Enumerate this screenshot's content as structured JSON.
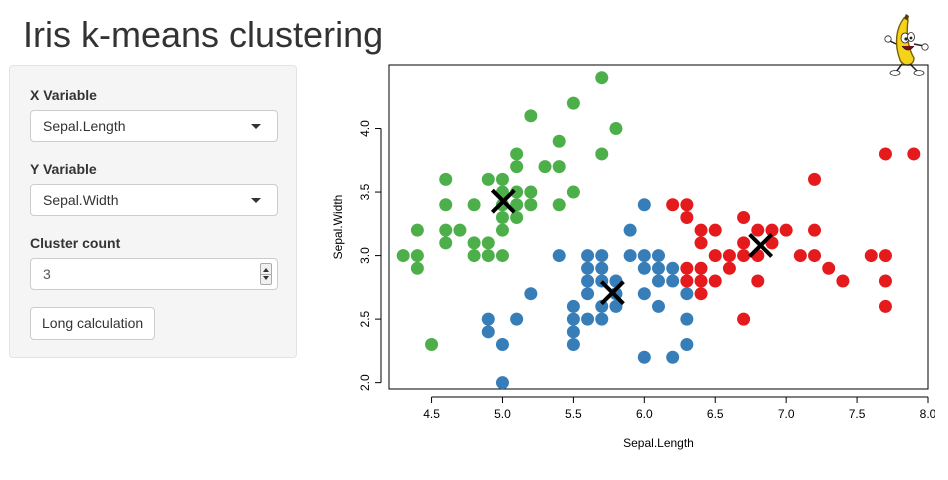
{
  "app": {
    "title": "Iris k-means clustering"
  },
  "sidebar": {
    "x_label": "X Variable",
    "x_value": "Sepal.Length",
    "y_label": "Y Variable",
    "y_value": "Sepal.Width",
    "cluster_label": "Cluster count",
    "cluster_value": "3",
    "button_label": "Long calculation"
  },
  "icons": {
    "dropdown": "caret-down-icon",
    "spinner": "number-spinner-icon",
    "mascot": "dancing-banana-icon"
  },
  "chart_data": {
    "type": "scatter",
    "title": "",
    "xlabel": "Sepal.Length",
    "ylabel": "Sepal.Width",
    "xlim": [
      4.2,
      8.0
    ],
    "ylim": [
      1.95,
      4.5
    ],
    "xticks": [
      "4.5",
      "5.0",
      "5.5",
      "6.0",
      "6.5",
      "7.0",
      "7.5",
      "8.0"
    ],
    "yticks": [
      "2.0",
      "2.5",
      "3.0",
      "3.5",
      "4.0"
    ],
    "grid": false,
    "legend": "none",
    "colors": {
      "green": "#4DAF4A",
      "blue": "#377EB8",
      "red": "#E41A1C",
      "center": "#000000"
    },
    "series": [
      {
        "color": "#4DAF4A",
        "points": [
          [
            4.3,
            3.0
          ],
          [
            4.4,
            2.9
          ],
          [
            4.4,
            3.0
          ],
          [
            4.4,
            3.2
          ],
          [
            4.5,
            2.3
          ],
          [
            4.6,
            3.1
          ],
          [
            4.6,
            3.2
          ],
          [
            4.6,
            3.4
          ],
          [
            4.6,
            3.6
          ],
          [
            4.7,
            3.2
          ],
          [
            4.8,
            3.0
          ],
          [
            4.8,
            3.1
          ],
          [
            4.8,
            3.4
          ],
          [
            4.9,
            3.0
          ],
          [
            4.9,
            3.1
          ],
          [
            4.9,
            3.6
          ],
          [
            5.0,
            3.0
          ],
          [
            5.0,
            3.2
          ],
          [
            5.0,
            3.3
          ],
          [
            5.0,
            3.4
          ],
          [
            5.0,
            3.5
          ],
          [
            5.0,
            3.6
          ],
          [
            5.1,
            3.3
          ],
          [
            5.1,
            3.4
          ],
          [
            5.1,
            3.5
          ],
          [
            5.1,
            3.7
          ],
          [
            5.1,
            3.8
          ],
          [
            5.2,
            3.4
          ],
          [
            5.2,
            3.5
          ],
          [
            5.2,
            4.1
          ],
          [
            5.3,
            3.7
          ],
          [
            5.4,
            3.4
          ],
          [
            5.4,
            3.7
          ],
          [
            5.4,
            3.9
          ],
          [
            5.5,
            3.5
          ],
          [
            5.5,
            4.2
          ],
          [
            5.7,
            3.8
          ],
          [
            5.7,
            4.4
          ],
          [
            5.8,
            4.0
          ]
        ]
      },
      {
        "color": "#377EB8",
        "points": [
          [
            4.9,
            2.4
          ],
          [
            4.9,
            2.5
          ],
          [
            5.0,
            2.0
          ],
          [
            5.0,
            2.3
          ],
          [
            5.1,
            2.5
          ],
          [
            5.2,
            2.7
          ],
          [
            5.4,
            3.0
          ],
          [
            5.5,
            2.3
          ],
          [
            5.5,
            2.4
          ],
          [
            5.5,
            2.5
          ],
          [
            5.5,
            2.6
          ],
          [
            5.6,
            2.5
          ],
          [
            5.6,
            2.7
          ],
          [
            5.6,
            2.8
          ],
          [
            5.6,
            2.9
          ],
          [
            5.6,
            3.0
          ],
          [
            5.7,
            2.5
          ],
          [
            5.7,
            2.6
          ],
          [
            5.7,
            2.8
          ],
          [
            5.7,
            2.9
          ],
          [
            5.7,
            3.0
          ],
          [
            5.8,
            2.6
          ],
          [
            5.8,
            2.7
          ],
          [
            5.8,
            2.8
          ],
          [
            5.9,
            3.0
          ],
          [
            5.9,
            3.2
          ],
          [
            6.0,
            2.2
          ],
          [
            6.0,
            2.7
          ],
          [
            6.0,
            2.9
          ],
          [
            6.0,
            3.0
          ],
          [
            6.0,
            3.4
          ],
          [
            6.1,
            2.6
          ],
          [
            6.1,
            2.8
          ],
          [
            6.1,
            2.9
          ],
          [
            6.1,
            3.0
          ],
          [
            6.2,
            2.2
          ],
          [
            6.2,
            2.8
          ],
          [
            6.2,
            2.9
          ],
          [
            6.3,
            2.3
          ],
          [
            6.3,
            2.5
          ],
          [
            6.3,
            2.7
          ]
        ]
      },
      {
        "color": "#E41A1C",
        "points": [
          [
            6.2,
            3.4
          ],
          [
            6.3,
            2.8
          ],
          [
            6.3,
            2.9
          ],
          [
            6.3,
            3.3
          ],
          [
            6.3,
            3.4
          ],
          [
            6.4,
            2.7
          ],
          [
            6.4,
            2.8
          ],
          [
            6.4,
            2.9
          ],
          [
            6.4,
            3.1
          ],
          [
            6.4,
            3.2
          ],
          [
            6.5,
            2.8
          ],
          [
            6.5,
            3.0
          ],
          [
            6.5,
            3.2
          ],
          [
            6.6,
            2.9
          ],
          [
            6.6,
            3.0
          ],
          [
            6.7,
            2.5
          ],
          [
            6.7,
            3.0
          ],
          [
            6.7,
            3.1
          ],
          [
            6.7,
            3.3
          ],
          [
            6.8,
            2.8
          ],
          [
            6.8,
            3.0
          ],
          [
            6.8,
            3.2
          ],
          [
            6.9,
            3.1
          ],
          [
            6.9,
            3.2
          ],
          [
            7.0,
            3.2
          ],
          [
            7.1,
            3.0
          ],
          [
            7.2,
            3.0
          ],
          [
            7.2,
            3.2
          ],
          [
            7.2,
            3.6
          ],
          [
            7.3,
            2.9
          ],
          [
            7.4,
            2.8
          ],
          [
            7.6,
            3.0
          ],
          [
            7.7,
            2.6
          ],
          [
            7.7,
            2.8
          ],
          [
            7.7,
            3.0
          ],
          [
            7.7,
            3.8
          ],
          [
            7.9,
            3.8
          ]
        ]
      }
    ],
    "centers": [
      [
        5.006,
        3.428
      ],
      [
        5.775,
        2.708
      ],
      [
        6.82,
        3.08
      ]
    ]
  }
}
